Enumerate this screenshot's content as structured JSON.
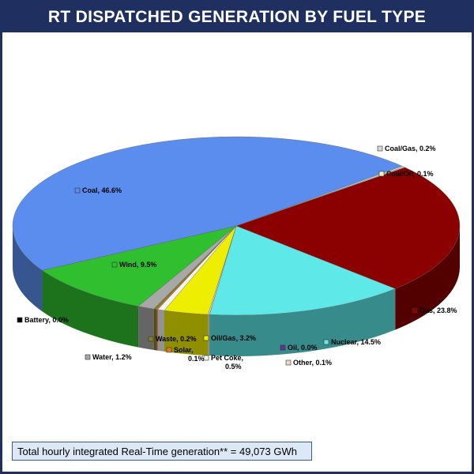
{
  "chart_data": {
    "type": "pie",
    "title": "RT DISPATCHED GENERATION BY FUEL TYPE",
    "values": [
      23.8,
      14.5,
      0.0,
      0.1,
      3.2,
      0.5,
      0.1,
      0.2,
      1.2,
      9.5,
      0.0,
      46.6,
      0.2,
      0.1
    ],
    "value_labels": [
      "Gas, 23.8%",
      "Nuclear, 14.5%",
      "Oil, 0.0%",
      "Other, 0.1%",
      "Oil/Gas, 3.2%",
      "Pet Coke,\n0.5%",
      "Solar,\n0.1%",
      "Waste, 0.2%",
      "Water, 1.2%",
      "Wind, 9.5%",
      "Battery, 0.0%",
      "Coal, 46.6%",
      "Coal/Gas, 0.2%",
      "Coal/Oil, 0.1%"
    ],
    "colors": [
      "#8b0000",
      "#5ee8e8",
      "#6a2ca0",
      "#f2d9c4",
      "#eeee00",
      "#f4f4f4",
      "#e8762c",
      "#808020",
      "#a8a8a8",
      "#2fbf2f",
      "#000000",
      "#5b8def",
      "#d8d8d8",
      "#f0f0c0"
    ],
    "note": "Total hourly integrated Real-Time generation** = 49,073 GWh"
  }
}
